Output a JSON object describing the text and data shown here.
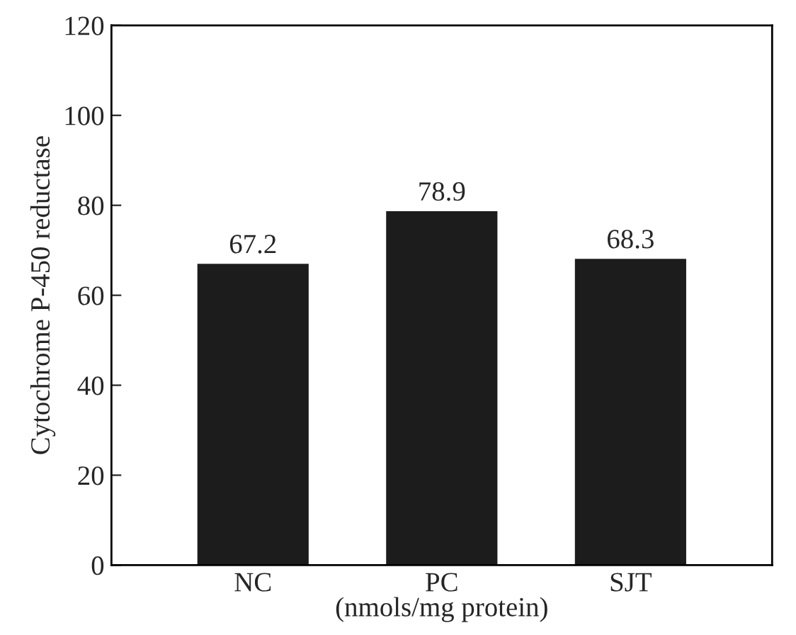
{
  "chart_data": {
    "type": "bar",
    "xlabel": "(nmols/mg protein)",
    "ylabel": "Cytochrome P-450 reductase",
    "categories": [
      "NC",
      "PC",
      "SJT"
    ],
    "values": [
      67.2,
      78.9,
      68.3
    ],
    "color": "#1c1c1c",
    "ylim": [
      0,
      120
    ],
    "yticks": [
      0,
      20,
      40,
      60,
      80,
      100,
      120
    ],
    "data_labels": true,
    "grid": false
  }
}
